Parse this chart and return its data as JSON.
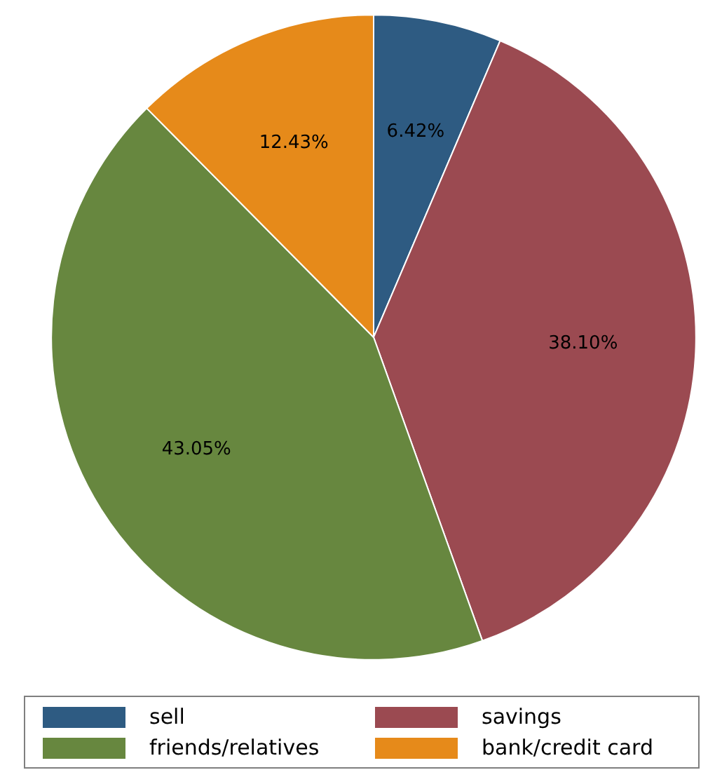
{
  "chart_data": {
    "type": "pie",
    "categories": [
      "sell",
      "savings",
      "friends/relatives",
      "bank/credit card"
    ],
    "values": [
      6.42,
      38.1,
      43.05,
      12.43
    ],
    "colors": [
      "#2e5b82",
      "#9b4a51",
      "#67873f",
      "#e68a1a"
    ],
    "value_labels": [
      "6.42%",
      "38.10%",
      "43.05%",
      "12.43%"
    ],
    "legend": "bottom"
  }
}
